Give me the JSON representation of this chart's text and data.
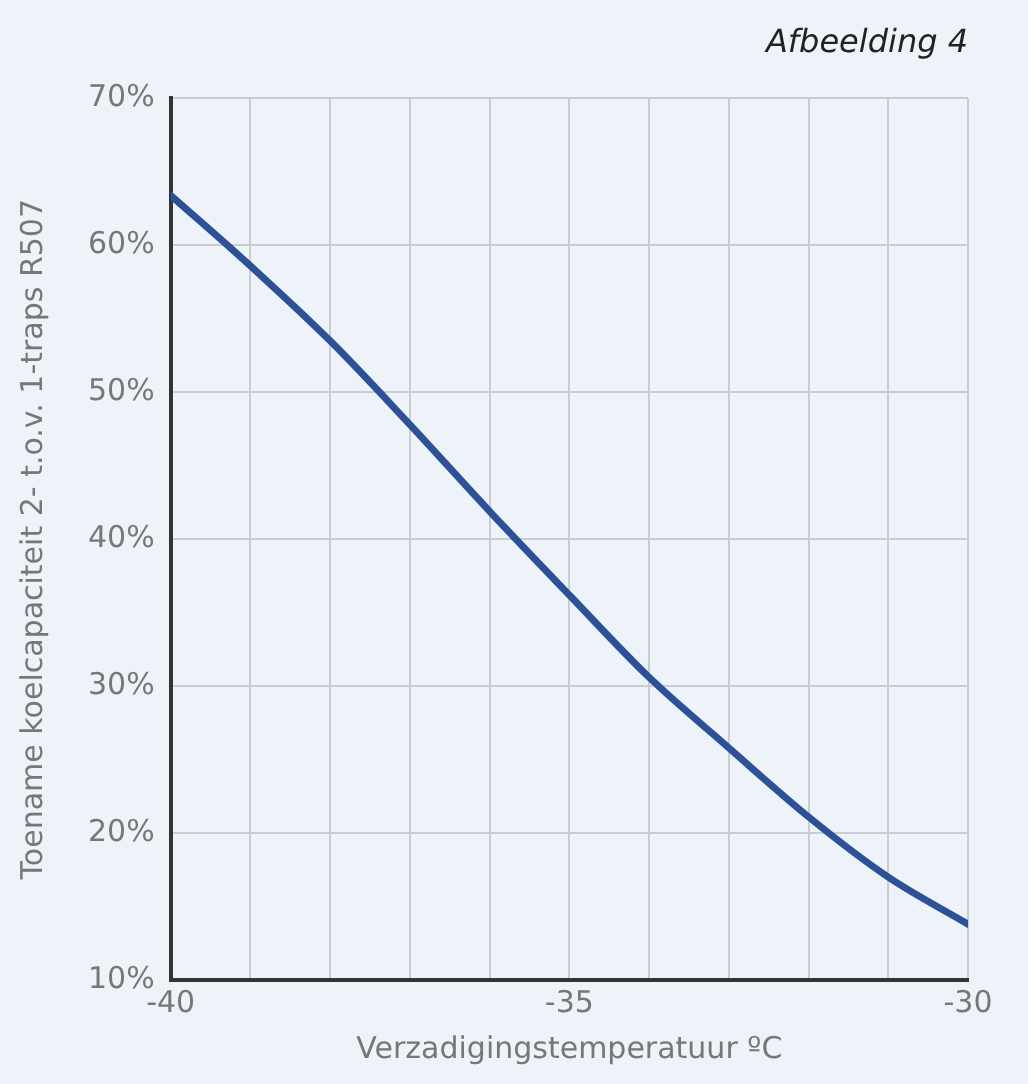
{
  "chart_data": {
    "type": "line",
    "title": "Afbeelding 4",
    "xlabel": "Verzadigingstemperatuur ºC",
    "ylabel": "Toename koelcapaciteit 2- t.o.v. 1-traps R507",
    "x": [
      -40,
      -39,
      -38,
      -37,
      -36,
      -35,
      -34,
      -33,
      -32,
      -31,
      -30
    ],
    "series": [
      {
        "color": "#2c5197",
        "values": [
          63.4,
          58.6,
          53.5,
          47.8,
          41.9,
          36.2,
          30.6,
          25.8,
          21.1,
          17.0,
          13.8
        ]
      }
    ],
    "xlim": [
      -40,
      -30
    ],
    "xticks": [
      -40,
      {
        "value": -39,
        "label": null
      },
      {
        "value": -38,
        "label": null
      },
      {
        "value": -37,
        "label": null
      },
      {
        "value": -36,
        "label": null
      },
      -35,
      {
        "value": -34,
        "label": null
      },
      {
        "value": -33,
        "label": null
      },
      {
        "value": -32,
        "label": null
      },
      {
        "value": -31,
        "label": null
      },
      -30
    ],
    "ylim": [
      10,
      70
    ],
    "yticks": [
      {
        "value": 10,
        "label": "10%"
      },
      {
        "value": 20,
        "label": "20%"
      },
      {
        "value": 30,
        "label": "30%"
      },
      {
        "value": 40,
        "label": "40%"
      },
      {
        "value": 50,
        "label": "50%"
      },
      {
        "value": 60,
        "label": "60%"
      },
      {
        "value": 70,
        "label": "70%"
      }
    ],
    "grid": true,
    "legend": false,
    "marker": "none",
    "line_style": "solid"
  }
}
